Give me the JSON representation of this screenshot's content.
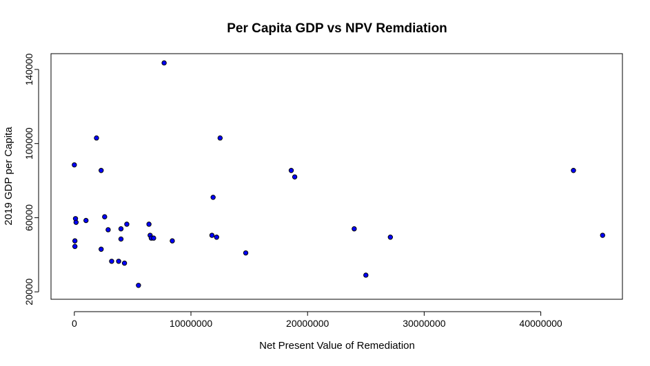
{
  "chart_data": {
    "type": "scatter",
    "title": "Per Capita GDP vs NPV Remdiation",
    "xlabel": "Net Present Value of Remediation",
    "ylabel": "2019 GDP per Capita",
    "xlim": [
      -2000000,
      47000000
    ],
    "ylim": [
      16000,
      148500
    ],
    "x_ticks": [
      0,
      10000000,
      20000000,
      30000000,
      40000000
    ],
    "x_tick_labels": [
      "0",
      "10000000",
      "20000000",
      "30000000",
      "40000000"
    ],
    "y_ticks": [
      20000,
      60000,
      100000,
      140000
    ],
    "y_tick_labels": [
      "20000",
      "60000",
      "100000",
      "140000"
    ],
    "grid": false,
    "legend": "none",
    "point_color": "#0000ff",
    "point_edge_color": "#000000",
    "points": [
      {
        "x": 7700000,
        "y": 143500
      },
      {
        "x": 1900000,
        "y": 103000
      },
      {
        "x": 12500000,
        "y": 103000
      },
      {
        "x": 0,
        "y": 88500
      },
      {
        "x": 2300000,
        "y": 85500
      },
      {
        "x": 18600000,
        "y": 85500
      },
      {
        "x": 42800000,
        "y": 85500
      },
      {
        "x": 18900000,
        "y": 82000
      },
      {
        "x": 11900000,
        "y": 71000
      },
      {
        "x": 2600000,
        "y": 60500
      },
      {
        "x": 100000,
        "y": 59500
      },
      {
        "x": 1000000,
        "y": 58500
      },
      {
        "x": 150000,
        "y": 57500
      },
      {
        "x": 4500000,
        "y": 56500
      },
      {
        "x": 6400000,
        "y": 56500
      },
      {
        "x": 2900000,
        "y": 53500
      },
      {
        "x": 4000000,
        "y": 54000
      },
      {
        "x": 24000000,
        "y": 54000
      },
      {
        "x": 6500000,
        "y": 50500
      },
      {
        "x": 11800000,
        "y": 50500
      },
      {
        "x": 45300000,
        "y": 50500
      },
      {
        "x": 6600000,
        "y": 49000
      },
      {
        "x": 6800000,
        "y": 49000
      },
      {
        "x": 12200000,
        "y": 49500
      },
      {
        "x": 27100000,
        "y": 49500
      },
      {
        "x": 4000000,
        "y": 48500
      },
      {
        "x": 50000,
        "y": 47500
      },
      {
        "x": 8400000,
        "y": 47500
      },
      {
        "x": 50000,
        "y": 44500
      },
      {
        "x": 2300000,
        "y": 43000
      },
      {
        "x": 14700000,
        "y": 41000
      },
      {
        "x": 3200000,
        "y": 36500
      },
      {
        "x": 3800000,
        "y": 36500
      },
      {
        "x": 4300000,
        "y": 35500
      },
      {
        "x": 25000000,
        "y": 29000
      },
      {
        "x": 5500000,
        "y": 23500
      }
    ]
  }
}
